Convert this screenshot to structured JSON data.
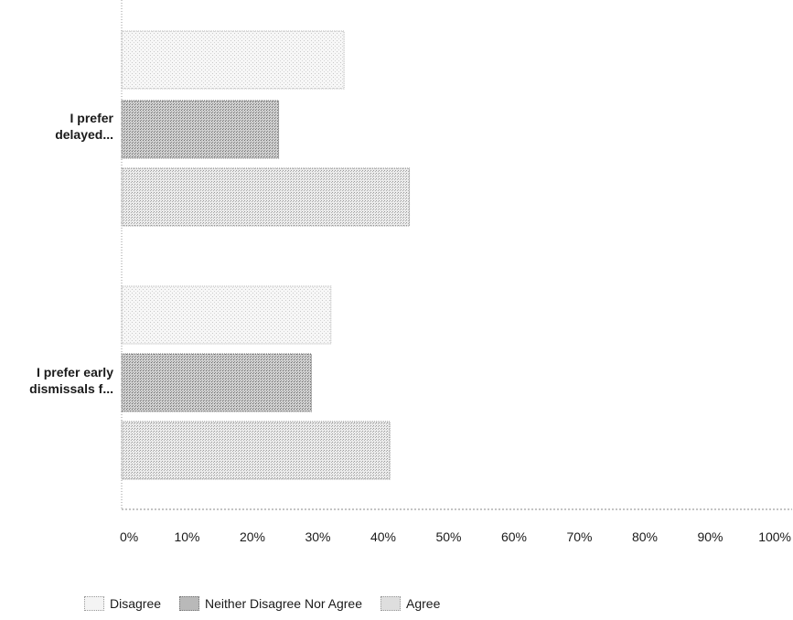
{
  "chart_data": {
    "type": "bar",
    "orientation": "horizontal",
    "categories": [
      "I prefer delayed...",
      "I prefer early dismissals f..."
    ],
    "category_lines": [
      [
        "I prefer",
        "delayed..."
      ],
      [
        "I prefer early",
        "dismissals f..."
      ]
    ],
    "series": [
      {
        "name": "Disagree",
        "values": [
          34,
          32
        ],
        "color": "#f4f4f4"
      },
      {
        "name": "Neither Disagree Nor Agree",
        "values": [
          24,
          29
        ],
        "color": "#b9b9b9"
      },
      {
        "name": "Agree",
        "values": [
          44,
          41
        ],
        "color": "#dedede"
      }
    ],
    "xlim": [
      0,
      100
    ],
    "x_ticks": [
      "0%",
      "10%",
      "20%",
      "30%",
      "40%",
      "50%",
      "60%",
      "70%",
      "80%",
      "90%",
      "100%"
    ],
    "legend_position": "bottom",
    "grid": false
  }
}
